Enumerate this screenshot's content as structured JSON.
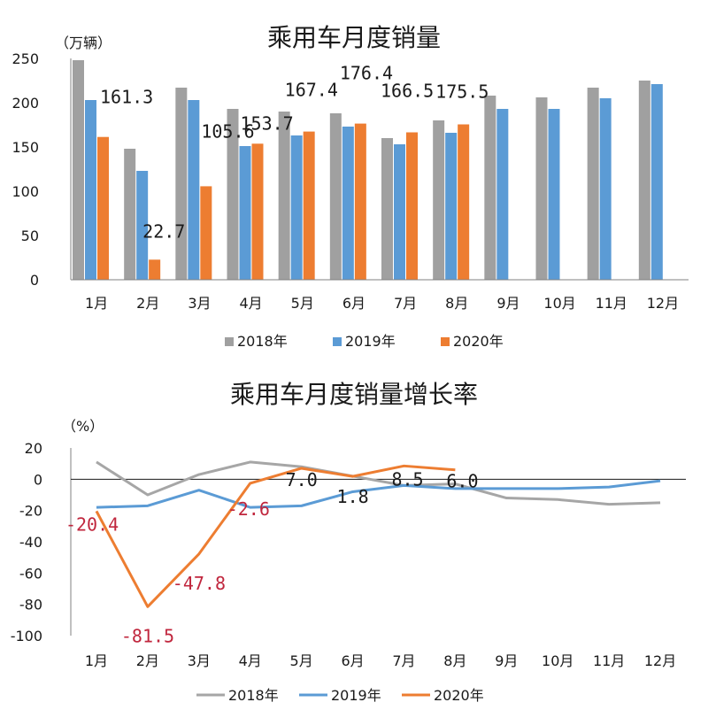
{
  "chart_data": [
    {
      "type": "bar",
      "title": "乘用车月度销量",
      "unit_label": "（万辆）",
      "ylim": [
        0,
        250
      ],
      "yticks": [
        "0",
        "50",
        "100",
        "150",
        "200",
        "250"
      ],
      "categories": [
        "1月",
        "2月",
        "3月",
        "4月",
        "5月",
        "6月",
        "7月",
        "8月",
        "9月",
        "10月",
        "11月",
        "12月"
      ],
      "series": [
        {
          "name": "2018年",
          "color": "#a0a0a0",
          "values": [
            248,
            148,
            217,
            193,
            190,
            188,
            160,
            180,
            208,
            206,
            217,
            225
          ]
        },
        {
          "name": "2019年",
          "color": "#5b9bd5",
          "values": [
            203,
            123,
            203,
            151,
            163,
            173,
            153,
            166,
            193,
            193,
            205,
            221
          ]
        },
        {
          "name": "2020年",
          "color": "#ed7d31",
          "values": [
            161.3,
            22.7,
            105.6,
            153.7,
            167.4,
            176.4,
            166.5,
            175.5,
            null,
            null,
            null,
            null
          ]
        }
      ],
      "data_labels": [
        "161.3",
        "22.7",
        "105.6",
        "153.7",
        "167.4",
        "176.4",
        "166.5",
        "175.5"
      ]
    },
    {
      "type": "line",
      "title": "乘用车月度销量增长率",
      "unit_label": "（%）",
      "ylim": [
        -100,
        20
      ],
      "yticks": [
        "20",
        "0",
        "-20",
        "-40",
        "-60",
        "-80",
        "-100"
      ],
      "categories": [
        "1月",
        "2月",
        "3月",
        "4月",
        "5月",
        "6月",
        "7月",
        "8月",
        "9月",
        "10月",
        "11月",
        "12月"
      ],
      "series": [
        {
          "name": "2018年",
          "color": "#a6a6a6",
          "values": [
            11,
            -10,
            3,
            11,
            8,
            2,
            -4,
            -3,
            -12,
            -13,
            -16,
            -15
          ]
        },
        {
          "name": "2019年",
          "color": "#5b9bd5",
          "values": [
            -18,
            -17,
            -7,
            -18,
            -17,
            -8,
            -4,
            -6,
            -6,
            -6,
            -5,
            -1
          ]
        },
        {
          "name": "2020年",
          "color": "#ed7d31",
          "values": [
            -20.4,
            -81.5,
            -47.8,
            -2.6,
            7.0,
            1.8,
            8.5,
            6.0,
            null,
            null,
            null,
            null
          ]
        }
      ],
      "data_labels": [
        {
          "text": "-20.4",
          "color": "#c0263d"
        },
        {
          "text": "-81.5",
          "color": "#c0263d"
        },
        {
          "text": "-47.8",
          "color": "#c0263d"
        },
        {
          "text": "-2.6",
          "color": "#c0263d"
        },
        {
          "text": "7.0",
          "color": "#1a1a1a"
        },
        {
          "text": "1.8",
          "color": "#1a1a1a"
        },
        {
          "text": "8.5",
          "color": "#1a1a1a"
        },
        {
          "text": "6.0",
          "color": "#1a1a1a"
        }
      ]
    }
  ]
}
